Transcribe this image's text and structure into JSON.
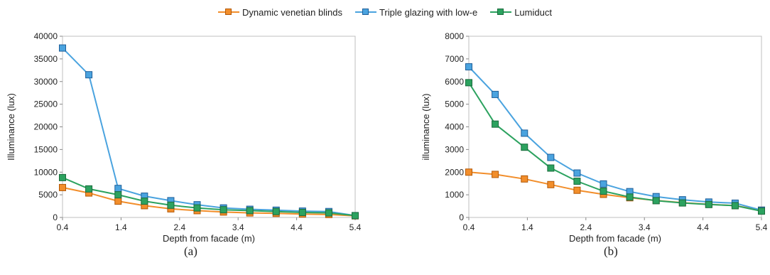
{
  "legend": {
    "items": [
      {
        "label": "Dynamic venetian blinds",
        "color": "#f28e2b"
      },
      {
        "label": "Triple glazing with low-e",
        "color": "#4aa3df"
      },
      {
        "label": "Lumiduct",
        "color": "#2ca25f"
      }
    ]
  },
  "panels": {
    "a": {
      "label": "(a)"
    },
    "b": {
      "label": "(b)"
    }
  },
  "chart_data": [
    {
      "type": "line",
      "title": "",
      "xlabel": "Depth from facade (m)",
      "ylabel": "Illuminance (lux)",
      "xlim": [
        0.4,
        5.4
      ],
      "ylim": [
        0,
        40000
      ],
      "xticks": [
        0.4,
        1.4,
        2.4,
        3.4,
        4.4,
        5.4
      ],
      "yticks": [
        0,
        5000,
        10000,
        15000,
        20000,
        25000,
        30000,
        35000,
        40000
      ],
      "grid": false,
      "legend_position": "top",
      "x": [
        0.4,
        0.85,
        1.35,
        1.8,
        2.25,
        2.7,
        3.15,
        3.6,
        4.05,
        4.5,
        4.95,
        5.4
      ],
      "series": [
        {
          "name": "Dynamic venetian blinds",
          "color": "#f28e2b",
          "values": [
            6600,
            5400,
            3600,
            2600,
            1900,
            1500,
            1200,
            1000,
            900,
            750,
            650,
            350
          ]
        },
        {
          "name": "Triple glazing with low-e",
          "color": "#4aa3df",
          "values": [
            37400,
            31500,
            6400,
            4700,
            3700,
            2800,
            2100,
            1800,
            1600,
            1400,
            1300,
            400
          ]
        },
        {
          "name": "Lumiduct",
          "color": "#2ca25f",
          "values": [
            8800,
            6300,
            5000,
            3600,
            2700,
            2100,
            1700,
            1500,
            1300,
            1100,
            1000,
            400
          ]
        }
      ]
    },
    {
      "type": "line",
      "title": "",
      "xlabel": "Depth from facade (m)",
      "ylabel": "illuminance (lux)",
      "xlim": [
        0.4,
        5.4
      ],
      "ylim": [
        0,
        8000
      ],
      "xticks": [
        0.4,
        1.4,
        2.4,
        3.4,
        4.4,
        5.4
      ],
      "yticks": [
        0,
        1000,
        2000,
        3000,
        4000,
        5000,
        6000,
        7000,
        8000
      ],
      "grid": false,
      "legend_position": "top",
      "x": [
        0.4,
        0.85,
        1.35,
        1.8,
        2.25,
        2.7,
        3.15,
        3.6,
        4.05,
        4.5,
        4.95,
        5.4
      ],
      "series": [
        {
          "name": "Dynamic venetian blinds",
          "color": "#f28e2b",
          "values": [
            2000,
            1900,
            1700,
            1450,
            1200,
            1020,
            870,
            750,
            650,
            580,
            520,
            320
          ]
        },
        {
          "name": "Triple glazing with low-e",
          "color": "#4aa3df",
          "values": [
            6650,
            5430,
            3720,
            2650,
            1960,
            1480,
            1140,
            920,
            780,
            680,
            630,
            320
          ]
        },
        {
          "name": "Lumiduct",
          "color": "#2ca25f",
          "values": [
            5950,
            4120,
            3100,
            2180,
            1600,
            1160,
            900,
            740,
            640,
            570,
            520,
            280
          ]
        }
      ]
    }
  ]
}
